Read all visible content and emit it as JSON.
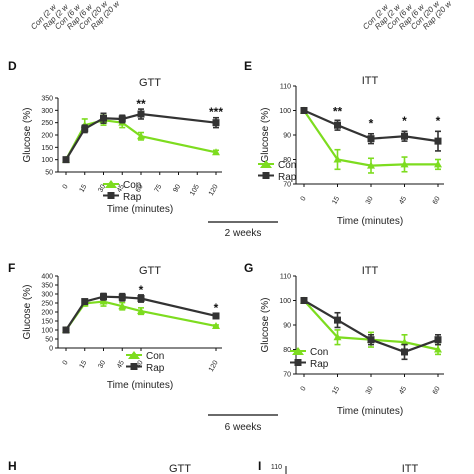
{
  "top_labels": {
    "left": [
      "Con (2 w",
      "Rap (2 w",
      "Con (6 w",
      "Rap (6 w",
      "Con (20 w",
      "Rap (20 w"
    ],
    "right": [
      "Con (2 w",
      "Rap (2 w",
      "Con (6 w",
      "Rap (6 w",
      "Con (20 w",
      "Rap (20 w"
    ]
  },
  "group_labels": [
    "2 weeks",
    "6 weeks"
  ],
  "colors": {
    "con": "#7ddc1f",
    "rap": "#333333"
  },
  "legend": {
    "con": "Con",
    "rap": "Rap"
  },
  "chart_data": [
    {
      "panel": "D",
      "title": "GTT",
      "type": "line",
      "xlabel": "Time (minutes)",
      "ylabel": "Glucose (%)",
      "ylim": [
        50,
        350
      ],
      "yticks": [
        50,
        100,
        150,
        200,
        250,
        300,
        350
      ],
      "xticks": [
        0,
        15,
        30,
        45,
        60,
        75,
        90,
        105,
        120
      ],
      "x": [
        0,
        15,
        30,
        45,
        60,
        120
      ],
      "series": [
        {
          "name": "Con",
          "values": [
            100,
            240,
            260,
            250,
            195,
            130
          ],
          "err": [
            5,
            25,
            20,
            20,
            15,
            8
          ]
        },
        {
          "name": "Rap",
          "values": [
            100,
            225,
            268,
            265,
            285,
            250
          ],
          "err": [
            5,
            15,
            20,
            15,
            20,
            20
          ]
        }
      ],
      "stars": [
        {
          "x": 60,
          "y": 310,
          "text": "**"
        },
        {
          "x": 120,
          "y": 278,
          "text": "***"
        }
      ]
    },
    {
      "panel": "E",
      "title": "ITT",
      "type": "line",
      "xlabel": "Time (minutes)",
      "ylabel": "Glucose (%)",
      "ylim": [
        70,
        110
      ],
      "yticks": [
        70,
        80,
        90,
        100,
        110
      ],
      "xticks": [
        0,
        15,
        30,
        45,
        60
      ],
      "x": [
        0,
        15,
        30,
        45,
        60
      ],
      "series": [
        {
          "name": "Con",
          "values": [
            100,
            80,
            77.5,
            78,
            78
          ],
          "err": [
            0.5,
            4,
            3,
            3,
            2
          ]
        },
        {
          "name": "Rap",
          "values": [
            100,
            94,
            88.5,
            89.5,
            87.5
          ],
          "err": [
            0.5,
            2,
            2,
            2,
            4
          ]
        }
      ],
      "stars": [
        {
          "x": 15,
          "y": 98,
          "text": "**"
        },
        {
          "x": 30,
          "y": 93,
          "text": "*"
        },
        {
          "x": 45,
          "y": 94,
          "text": "*"
        },
        {
          "x": 60,
          "y": 94,
          "text": "*"
        }
      ]
    },
    {
      "panel": "F",
      "title": "GTT",
      "type": "line",
      "xlabel": "Time (minutes)",
      "ylabel": "Glucose (%)",
      "ylim": [
        0,
        400
      ],
      "yticks": [
        0,
        50,
        100,
        150,
        200,
        250,
        300,
        350,
        400
      ],
      "xticks": [
        0,
        15,
        30,
        45,
        60,
        120
      ],
      "x": [
        0,
        15,
        30,
        45,
        60,
        120
      ],
      "series": [
        {
          "name": "Con",
          "values": [
            100,
            248,
            258,
            232,
            205,
            122
          ],
          "err": [
            4,
            15,
            25,
            20,
            18,
            6
          ]
        },
        {
          "name": "Rap",
          "values": [
            100,
            258,
            285,
            282,
            275,
            178
          ],
          "err": [
            4,
            10,
            18,
            20,
            20,
            12
          ]
        }
      ],
      "stars": [
        {
          "x": 60,
          "y": 300,
          "text": "*"
        },
        {
          "x": 120,
          "y": 200,
          "text": "*"
        }
      ]
    },
    {
      "panel": "G",
      "title": "ITT",
      "type": "line",
      "xlabel": "Time (minutes)",
      "ylabel": "Glucose (%)",
      "ylim": [
        70,
        110
      ],
      "yticks": [
        70,
        80,
        90,
        100,
        110
      ],
      "xticks": [
        0,
        15,
        30,
        45,
        60
      ],
      "x": [
        0,
        15,
        30,
        45,
        60
      ],
      "series": [
        {
          "name": "Con",
          "values": [
            100,
            85,
            84,
            83,
            80
          ],
          "err": [
            0.5,
            3,
            3,
            3,
            2
          ]
        },
        {
          "name": "Rap",
          "values": [
            100,
            92,
            84,
            79,
            84
          ],
          "err": [
            0.5,
            3,
            2,
            3,
            2
          ]
        }
      ],
      "stars": []
    }
  ],
  "bottom_panels": {
    "H": {
      "label": "H",
      "title": "GTT"
    },
    "I": {
      "label": "I",
      "title": "ITT",
      "tick": "110"
    }
  }
}
